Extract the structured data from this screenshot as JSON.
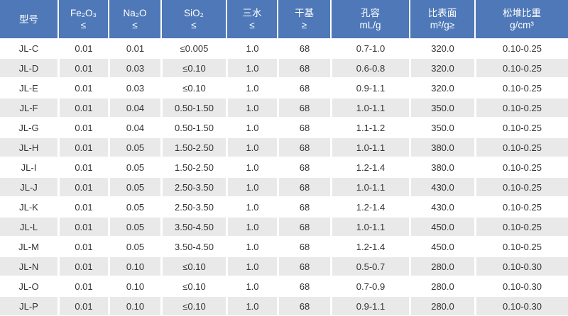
{
  "colors": {
    "header_bg": "#4e78b7",
    "header_text": "#ffffff",
    "row_bg": "#ffffff",
    "row_alt_bg": "#e9e9e9",
    "cell_text": "#333333",
    "separator": "#ffffff"
  },
  "table": {
    "columns": [
      {
        "key": "model",
        "line1": "型号",
        "line2": ""
      },
      {
        "key": "fe2o3",
        "line1": "Fe₂O₃",
        "line2": "≤"
      },
      {
        "key": "na2o",
        "line1": "Na₂O",
        "line2": "≤"
      },
      {
        "key": "sio2",
        "line1": "SiO₂",
        "line2": "≤"
      },
      {
        "key": "trihydrate",
        "line1": "三水",
        "line2": "≤"
      },
      {
        "key": "dry-basis",
        "line1": "干基",
        "line2": "≥"
      },
      {
        "key": "pore-volume",
        "line1": "孔容",
        "line2": "mL/g"
      },
      {
        "key": "surface-area",
        "line1": "比表面",
        "line2": "m²/g≥"
      },
      {
        "key": "bulk-density",
        "line1": "松堆比重",
        "line2": "g/cm³"
      }
    ],
    "rows": [
      [
        "JL-C",
        "0.01",
        "0.01",
        "≤0.005",
        "1.0",
        "68",
        "0.7-1.0",
        "320.0",
        "0.10-0.25"
      ],
      [
        "JL-D",
        "0.01",
        "0.03",
        "≤0.10",
        "1.0",
        "68",
        "0.6-0.8",
        "320.0",
        "0.10-0.25"
      ],
      [
        "JL-E",
        "0.01",
        "0.03",
        "≤0.10",
        "1.0",
        "68",
        "0.9-1.1",
        "320.0",
        "0.10-0.25"
      ],
      [
        "JL-F",
        "0.01",
        "0.04",
        "0.50-1.50",
        "1.0",
        "68",
        "1.0-1.1",
        "350.0",
        "0.10-0.25"
      ],
      [
        "JL-G",
        "0.01",
        "0.04",
        "0.50-1.50",
        "1.0",
        "68",
        "1.1-1.2",
        "350.0",
        "0.10-0.25"
      ],
      [
        "JL-H",
        "0.01",
        "0.05",
        "1.50-2.50",
        "1.0",
        "68",
        "1.0-1.1",
        "380.0",
        "0.10-0.25"
      ],
      [
        "JL-I",
        "0.01",
        "0.05",
        "1.50-2.50",
        "1.0",
        "68",
        "1.2-1.4",
        "380.0",
        "0.10-0.25"
      ],
      [
        "JL-J",
        "0.01",
        "0.05",
        "2.50-3.50",
        "1.0",
        "68",
        "1.0-1.1",
        "430.0",
        "0.10-0.25"
      ],
      [
        "JL-K",
        "0.01",
        "0.05",
        "2.50-3.50",
        "1.0",
        "68",
        "1.2-1.4",
        "430.0",
        "0.10-0.25"
      ],
      [
        "JL-L",
        "0.01",
        "0.05",
        "3.50-4.50",
        "1.0",
        "68",
        "1.0-1.1",
        "450.0",
        "0.10-0.25"
      ],
      [
        "JL-M",
        "0.01",
        "0.05",
        "3.50-4.50",
        "1.0",
        "68",
        "1.2-1.4",
        "450.0",
        "0.10-0.25"
      ],
      [
        "JL-N",
        "0.01",
        "0.10",
        "≤0.10",
        "1.0",
        "68",
        "0.5-0.7",
        "280.0",
        "0.10-0.30"
      ],
      [
        "JL-O",
        "0.01",
        "0.10",
        "≤0.10",
        "1.0",
        "68",
        "0.7-0.9",
        "280.0",
        "0.10-0.30"
      ],
      [
        "JL-P",
        "0.01",
        "0.10",
        "≤0.10",
        "1.0",
        "68",
        "0.9-1.1",
        "280.0",
        "0.10-0.30"
      ]
    ]
  }
}
